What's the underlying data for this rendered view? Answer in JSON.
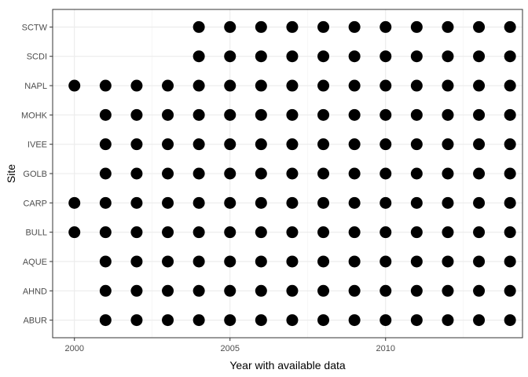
{
  "chart_data": {
    "type": "scatter",
    "xlabel": "Year with available data",
    "ylabel": "Site",
    "xlim": [
      1999.3,
      2014.4
    ],
    "x_ticks": [
      2000,
      2005,
      2010
    ],
    "x_tick_labels": [
      "2000",
      "2005",
      "2010"
    ],
    "categories": [
      "SCTW",
      "SCDI",
      "NAPL",
      "MOHK",
      "IVEE",
      "GOLB",
      "CARP",
      "BULL",
      "AQUE",
      "AHND",
      "ABUR"
    ],
    "grid": true,
    "theme": "bw",
    "point_color": "#000000",
    "series": [
      {
        "y": "SCTW",
        "years": [
          2004,
          2005,
          2006,
          2007,
          2008,
          2009,
          2010,
          2011,
          2012,
          2013,
          2014
        ]
      },
      {
        "y": "SCDI",
        "years": [
          2004,
          2005,
          2006,
          2007,
          2008,
          2009,
          2010,
          2011,
          2012,
          2013,
          2014
        ]
      },
      {
        "y": "NAPL",
        "years": [
          2000,
          2001,
          2002,
          2003,
          2004,
          2005,
          2006,
          2007,
          2008,
          2009,
          2010,
          2011,
          2012,
          2013,
          2014
        ]
      },
      {
        "y": "MOHK",
        "years": [
          2001,
          2002,
          2003,
          2004,
          2005,
          2006,
          2007,
          2008,
          2009,
          2010,
          2011,
          2012,
          2013,
          2014
        ]
      },
      {
        "y": "IVEE",
        "years": [
          2001,
          2002,
          2003,
          2004,
          2005,
          2006,
          2007,
          2008,
          2009,
          2010,
          2011,
          2012,
          2013,
          2014
        ]
      },
      {
        "y": "GOLB",
        "years": [
          2001,
          2002,
          2003,
          2004,
          2005,
          2006,
          2007,
          2008,
          2009,
          2010,
          2011,
          2012,
          2013,
          2014
        ]
      },
      {
        "y": "CARP",
        "years": [
          2000,
          2001,
          2002,
          2003,
          2004,
          2005,
          2006,
          2007,
          2008,
          2009,
          2010,
          2011,
          2012,
          2013,
          2014
        ]
      },
      {
        "y": "BULL",
        "years": [
          2000,
          2001,
          2002,
          2003,
          2004,
          2005,
          2006,
          2007,
          2008,
          2009,
          2010,
          2011,
          2012,
          2013,
          2014
        ]
      },
      {
        "y": "AQUE",
        "years": [
          2001,
          2002,
          2003,
          2004,
          2005,
          2006,
          2007,
          2008,
          2009,
          2010,
          2011,
          2012,
          2013,
          2014
        ]
      },
      {
        "y": "AHND",
        "years": [
          2001,
          2002,
          2003,
          2004,
          2005,
          2006,
          2007,
          2008,
          2009,
          2010,
          2011,
          2012,
          2013,
          2014
        ]
      },
      {
        "y": "ABUR",
        "years": [
          2001,
          2002,
          2003,
          2004,
          2005,
          2006,
          2007,
          2008,
          2009,
          2010,
          2011,
          2012,
          2013,
          2014
        ]
      }
    ]
  }
}
